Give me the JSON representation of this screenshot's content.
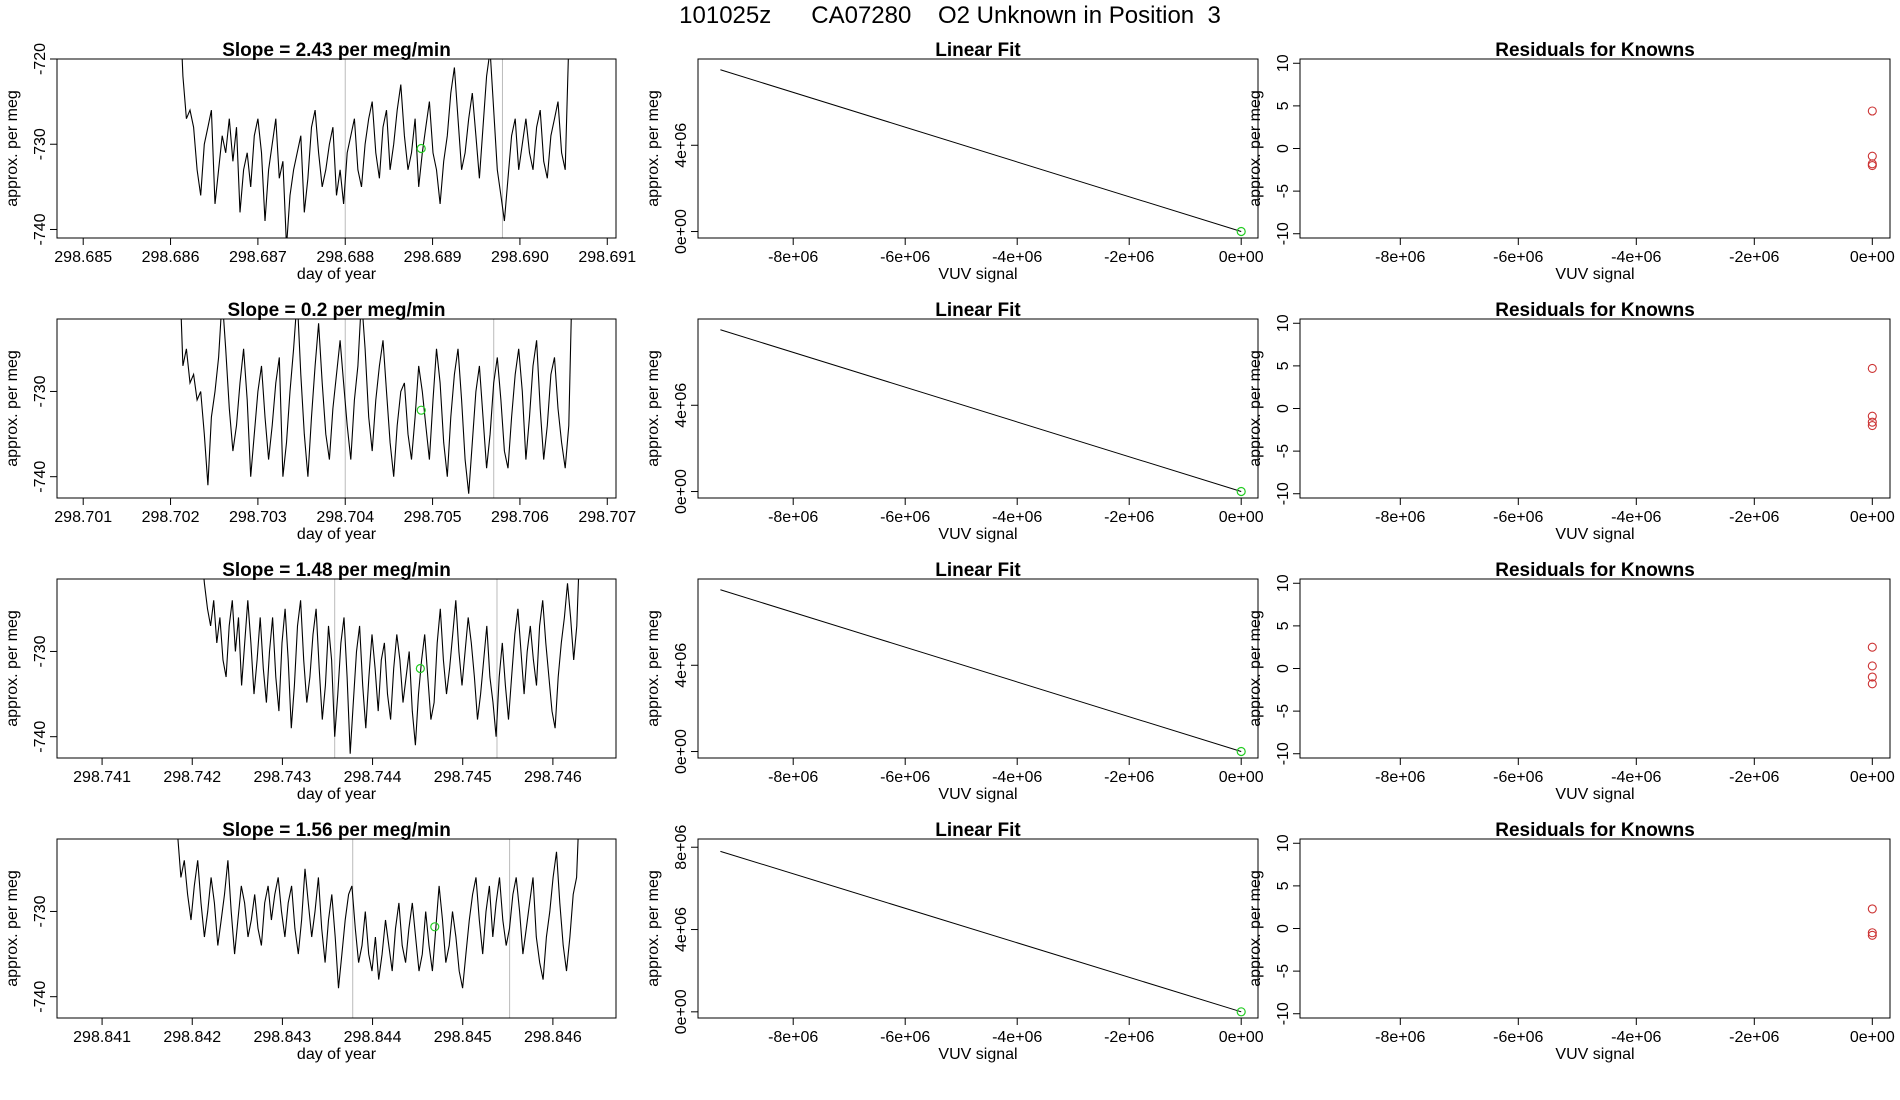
{
  "figure_title": "101025z      CA07280    O2 Unknown in Position  3",
  "colors": {
    "trace": "#000000",
    "frame": "#000000",
    "vline": "#bbbbbb",
    "unknown_marker": "#22cc22",
    "residual_marker": "#cc3333"
  },
  "chart_data": [
    {
      "type": "line",
      "row": 1,
      "panel": "time-series",
      "title": "Slope =  2.43  per meg/min",
      "xlabel": "day of year",
      "ylabel": "approx. per meg",
      "xlim": [
        298.6847,
        298.6911
      ],
      "ylim": [
        -741,
        -720
      ],
      "xticks": [
        "298.685",
        "298.686",
        "298.687",
        "298.688",
        "298.689",
        "298.690",
        "298.691"
      ],
      "yticks": [
        "-740",
        "-730",
        "-720"
      ],
      "vlines": [
        298.688,
        298.6898
      ],
      "series_x": [
        298.6861,
        298.6906
      ],
      "series_y": [
        -712,
        -722,
        -727,
        -726,
        -728,
        -733,
        -736,
        -730,
        -728,
        -726,
        -737,
        -733,
        -729,
        -731,
        -727,
        -732,
        -728,
        -738,
        -733,
        -731,
        -735,
        -729,
        -727,
        -731,
        -739,
        -733,
        -730,
        -727,
        -734,
        -732,
        -742,
        -736,
        -733,
        -731,
        -729,
        -738,
        -734,
        -728,
        -726,
        -731,
        -735,
        -733,
        -730,
        -728,
        -736,
        -733,
        -737,
        -731,
        -729,
        -727,
        -733,
        -735,
        -730,
        -727,
        -725,
        -731,
        -734,
        -728,
        -726,
        -733,
        -730,
        -726,
        -723,
        -729,
        -733,
        -731,
        -727,
        -735,
        -731,
        -728,
        -725,
        -731,
        -733,
        -737,
        -732,
        -729,
        -724,
        -721,
        -727,
        -733,
        -731,
        -727,
        -724,
        -729,
        -734,
        -728,
        -722,
        -719,
        -726,
        -733,
        -736,
        -739,
        -734,
        -729,
        -727,
        -733,
        -730,
        -727,
        -731,
        -733,
        -728,
        -726,
        -732,
        -734,
        -729,
        -727,
        -725,
        -731,
        -733,
        -718,
        -711
      ],
      "marker": {
        "x": 298.68887,
        "y": -730.5
      }
    },
    {
      "type": "line",
      "row": 1,
      "panel": "linear-fit",
      "title": "Linear Fit",
      "xlabel": "VUV signal",
      "ylabel": "approx. per meg",
      "xlim": [
        -9700000,
        300000
      ],
      "ylim": [
        -300000,
        8000000
      ],
      "xticks": [
        "-8e+06",
        "-6e+06",
        "-4e+06",
        "-2e+06",
        "0e+00"
      ],
      "yticks": [
        "0e+00",
        "4e+06"
      ],
      "line": {
        "x": [
          -9300000,
          0
        ],
        "y": [
          7500000,
          0
        ]
      },
      "point": {
        "x": 0,
        "y": 0
      }
    },
    {
      "type": "scatter",
      "row": 1,
      "panel": "residuals",
      "title": "Residuals for Knowns",
      "xlabel": "VUV signal",
      "ylabel": "approx. per meg",
      "xlim": [
        -9700000,
        300000
      ],
      "ylim": [
        -10.5,
        10.5
      ],
      "xticks": [
        "-8e+06",
        "-6e+06",
        "-4e+06",
        "-2e+06",
        "0e+00"
      ],
      "yticks": [
        "-10",
        "-5",
        "0",
        "5",
        "10"
      ],
      "points": {
        "x": [
          0,
          0,
          0,
          0
        ],
        "y": [
          4.4,
          -0.9,
          -1.8,
          -2.0
        ]
      }
    },
    {
      "type": "line",
      "row": 2,
      "panel": "time-series",
      "title": "Slope =  0.2  per meg/min",
      "xlabel": "day of year",
      "ylabel": "approx. per meg",
      "xlim": [
        298.7007,
        298.7071
      ],
      "ylim": [
        -742.5,
        -721.5
      ],
      "xticks": [
        "298.701",
        "298.702",
        "298.703",
        "298.704",
        "298.705",
        "298.706",
        "298.707"
      ],
      "yticks": [
        "-740",
        "-730"
      ],
      "vlines": [
        298.704,
        298.7057
      ],
      "series_x": [
        298.7021,
        298.7066
      ],
      "series_y": [
        -715,
        -727,
        -725,
        -729,
        -728,
        -731,
        -730,
        -735,
        -741,
        -733,
        -730,
        -726,
        -719,
        -725,
        -732,
        -737,
        -734,
        -729,
        -725,
        -731,
        -740,
        -735,
        -730,
        -727,
        -733,
        -738,
        -734,
        -729,
        -726,
        -740,
        -736,
        -730,
        -725,
        -719,
        -728,
        -735,
        -740,
        -733,
        -727,
        -722,
        -729,
        -735,
        -738,
        -732,
        -728,
        -724,
        -729,
        -734,
        -738,
        -731,
        -727,
        -719,
        -725,
        -733,
        -737,
        -731,
        -727,
        -724,
        -730,
        -736,
        -740,
        -734,
        -730,
        -729,
        -735,
        -738,
        -733,
        -727,
        -730,
        -734,
        -738,
        -731,
        -725,
        -729,
        -736,
        -740,
        -733,
        -728,
        -725,
        -731,
        -738,
        -742,
        -736,
        -730,
        -727,
        -733,
        -739,
        -735,
        -729,
        -726,
        -731,
        -737,
        -739,
        -733,
        -728,
        -725,
        -730,
        -738,
        -733,
        -727,
        -724,
        -732,
        -738,
        -734,
        -728,
        -726,
        -732,
        -736,
        -739,
        -734,
        -716
      ],
      "marker": {
        "x": 298.70487,
        "y": -732.2
      }
    },
    {
      "type": "line",
      "row": 2,
      "panel": "linear-fit",
      "title": "Linear Fit",
      "xlabel": "VUV signal",
      "ylabel": "approx. per meg",
      "xlim": [
        -9700000,
        300000
      ],
      "ylim": [
        -300000,
        8000000
      ],
      "xticks": [
        "-8e+06",
        "-6e+06",
        "-4e+06",
        "-2e+06",
        "0e+00"
      ],
      "yticks": [
        "0e+00",
        "4e+06"
      ],
      "line": {
        "x": [
          -9300000,
          0
        ],
        "y": [
          7500000,
          0
        ]
      },
      "point": {
        "x": 0,
        "y": 0
      }
    },
    {
      "type": "scatter",
      "row": 2,
      "panel": "residuals",
      "title": "Residuals for Knowns",
      "xlabel": "VUV signal",
      "ylabel": "approx. per meg",
      "xlim": [
        -9700000,
        300000
      ],
      "ylim": [
        -10.5,
        10.5
      ],
      "xticks": [
        "-8e+06",
        "-6e+06",
        "-4e+06",
        "-2e+06",
        "0e+00"
      ],
      "yticks": [
        "-10",
        "-5",
        "0",
        "5",
        "10"
      ],
      "points": {
        "x": [
          0,
          0,
          0,
          0
        ],
        "y": [
          4.7,
          -0.9,
          -1.6,
          -2.0
        ]
      }
    },
    {
      "type": "line",
      "row": 3,
      "panel": "time-series",
      "title": "Slope =  1.48  per meg/min",
      "xlabel": "day of year",
      "ylabel": "approx. per meg",
      "xlim": [
        298.7405,
        298.7467
      ],
      "ylim": [
        -742.5,
        -721.5
      ],
      "xticks": [
        "298.741",
        "298.742",
        "298.743",
        "298.744",
        "298.745",
        "298.746"
      ],
      "yticks": [
        "-740",
        "-730"
      ],
      "vlines": [
        298.74358,
        298.74538
      ],
      "series_x": [
        298.7421,
        298.7463
      ],
      "series_y": [
        -718,
        -722,
        -725,
        -727,
        -724,
        -729,
        -726,
        -731,
        -733,
        -727,
        -724,
        -730,
        -726,
        -734,
        -729,
        -724,
        -729,
        -735,
        -731,
        -726,
        -732,
        -736,
        -730,
        -726,
        -733,
        -737,
        -729,
        -725,
        -731,
        -739,
        -734,
        -727,
        -724,
        -731,
        -736,
        -733,
        -728,
        -725,
        -732,
        -738,
        -734,
        -727,
        -731,
        -740,
        -735,
        -729,
        -726,
        -733,
        -742,
        -736,
        -730,
        -727,
        -734,
        -739,
        -733,
        -728,
        -732,
        -737,
        -731,
        -729,
        -735,
        -738,
        -732,
        -728,
        -731,
        -736,
        -733,
        -730,
        -737,
        -741,
        -735,
        -731,
        -728,
        -733,
        -738,
        -736,
        -729,
        -725,
        -731,
        -735,
        -732,
        -728,
        -724,
        -730,
        -734,
        -730,
        -726,
        -729,
        -733,
        -738,
        -735,
        -731,
        -727,
        -733,
        -736,
        -740,
        -733,
        -729,
        -734,
        -738,
        -733,
        -728,
        -725,
        -730,
        -735,
        -730,
        -727,
        -731,
        -734,
        -727,
        -724,
        -729,
        -733,
        -737,
        -739,
        -733,
        -729,
        -726,
        -722,
        -726,
        -731,
        -727,
        -717
      ],
      "marker": {
        "x": 298.74453,
        "y": -732
      }
    },
    {
      "type": "line",
      "row": 3,
      "panel": "linear-fit",
      "title": "Linear Fit",
      "xlabel": "VUV signal",
      "ylabel": "approx. per meg",
      "xlim": [
        -9700000,
        300000
      ],
      "ylim": [
        -300000,
        8000000
      ],
      "xticks": [
        "-8e+06",
        "-6e+06",
        "-4e+06",
        "-2e+06",
        "0e+00"
      ],
      "yticks": [
        "0e+00",
        "4e+06"
      ],
      "line": {
        "x": [
          -9300000,
          0
        ],
        "y": [
          7500000,
          0
        ]
      },
      "point": {
        "x": 0,
        "y": 0
      }
    },
    {
      "type": "scatter",
      "row": 3,
      "panel": "residuals",
      "title": "Residuals for Knowns",
      "xlabel": "VUV signal",
      "ylabel": "approx. per meg",
      "xlim": [
        -9700000,
        300000
      ],
      "ylim": [
        -10.5,
        10.5
      ],
      "xticks": [
        "-8e+06",
        "-6e+06",
        "-4e+06",
        "-2e+06",
        "0e+00"
      ],
      "yticks": [
        "-10",
        "-5",
        "0",
        "5",
        "10"
      ],
      "points": {
        "x": [
          0,
          0,
          0,
          0
        ],
        "y": [
          2.5,
          0.3,
          -1.0,
          -1.8
        ]
      }
    },
    {
      "type": "line",
      "row": 4,
      "panel": "time-series",
      "title": "Slope =  1.56  per meg/min",
      "xlabel": "day of year",
      "ylabel": "approx. per meg",
      "xlim": [
        298.8405,
        298.8467
      ],
      "ylim": [
        -742.5,
        -721.5
      ],
      "xticks": [
        "298.841",
        "298.842",
        "298.843",
        "298.844",
        "298.845",
        "298.846"
      ],
      "yticks": [
        "-740",
        "-730"
      ],
      "vlines": [
        298.84378,
        298.84552
      ],
      "series_x": [
        298.8418,
        298.8463
      ],
      "series_y": [
        -718,
        -721,
        -726,
        -724,
        -728,
        -731,
        -727,
        -724,
        -729,
        -733,
        -730,
        -726,
        -729,
        -734,
        -731,
        -728,
        -724,
        -730,
        -735,
        -731,
        -727,
        -729,
        -733,
        -731,
        -728,
        -732,
        -734,
        -729,
        -727,
        -731,
        -728,
        -726,
        -730,
        -733,
        -729,
        -727,
        -732,
        -735,
        -731,
        -725,
        -729,
        -733,
        -730,
        -726,
        -732,
        -736,
        -731,
        -728,
        -733,
        -739,
        -735,
        -731,
        -728,
        -727,
        -732,
        -736,
        -734,
        -730,
        -735,
        -737,
        -733,
        -738,
        -735,
        -731,
        -734,
        -737,
        -732,
        -729,
        -734,
        -736,
        -732,
        -729,
        -733,
        -737,
        -735,
        -730,
        -734,
        -737,
        -732,
        -727,
        -731,
        -736,
        -734,
        -730,
        -733,
        -737,
        -739,
        -735,
        -731,
        -728,
        -726,
        -731,
        -735,
        -730,
        -727,
        -733,
        -729,
        -726,
        -731,
        -734,
        -732,
        -728,
        -726,
        -730,
        -735,
        -732,
        -729,
        -726,
        -733,
        -736,
        -738,
        -733,
        -730,
        -726,
        -723,
        -729,
        -734,
        -737,
        -733,
        -728,
        -726,
        -716
      ],
      "marker": {
        "x": 298.84469,
        "y": -731.8
      }
    },
    {
      "type": "line",
      "row": 4,
      "panel": "linear-fit",
      "title": "Linear Fit",
      "xlabel": "VUV signal",
      "ylabel": "approx. per meg",
      "xlim": [
        -9700000,
        300000
      ],
      "ylim": [
        -300000,
        8400000
      ],
      "xticks": [
        "-8e+06",
        "-6e+06",
        "-4e+06",
        "-2e+06",
        "0e+00"
      ],
      "yticks": [
        "0e+00",
        "4e+06",
        "8e+06"
      ],
      "line": {
        "x": [
          -9300000,
          0
        ],
        "y": [
          7800000,
          0
        ]
      },
      "point": {
        "x": 0,
        "y": 0
      }
    },
    {
      "type": "scatter",
      "row": 4,
      "panel": "residuals",
      "title": "Residuals for Knowns",
      "xlabel": "VUV signal",
      "ylabel": "approx. per meg",
      "xlim": [
        -9700000,
        300000
      ],
      "ylim": [
        -10.5,
        10.5
      ],
      "xticks": [
        "-8e+06",
        "-6e+06",
        "-4e+06",
        "-2e+06",
        "0e+00"
      ],
      "yticks": [
        "-10",
        "-5",
        "0",
        "5",
        "10"
      ],
      "points": {
        "x": [
          0,
          0,
          0
        ],
        "y": [
          2.3,
          -0.5,
          -0.8
        ]
      }
    }
  ]
}
